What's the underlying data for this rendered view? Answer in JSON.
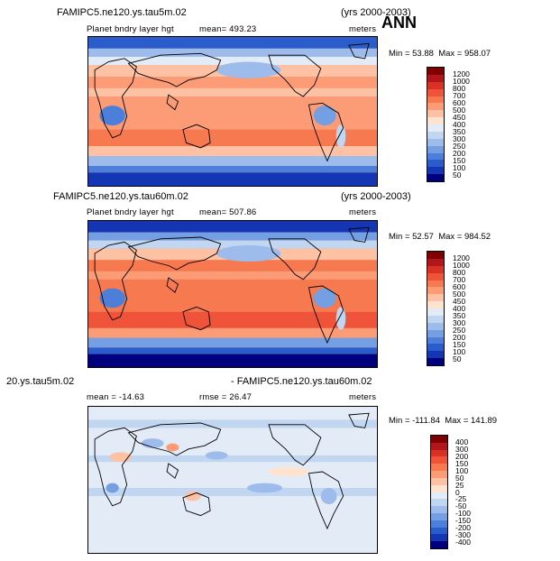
{
  "season": "ANN",
  "panels": [
    {
      "case_left": "FAMIPC5.ne120.ys.tau5m.02",
      "case_right": "",
      "years": "(yrs 2000-2003)",
      "field": "Planet bndry layer hgt",
      "mean": "mean= 493.23",
      "rmse": "",
      "units": "meters",
      "min": "Min = ",
      "min_val": "53.88",
      "max": "Max = ",
      "max_val": "958.07",
      "legend_labels": [
        "1200",
        "1000",
        "800",
        "700",
        "600",
        "500",
        "450",
        "400",
        "350",
        "300",
        "250",
        "200",
        "150",
        "100",
        "50"
      ],
      "legend_colors": [
        "#800000",
        "#b2151c",
        "#d93124",
        "#ef5339",
        "#f6794f",
        "#fb9c77",
        "#fdc1a4",
        "#fee3d1",
        "#e3ebf7",
        "#c1d6f1",
        "#9dbceb",
        "#759fe3",
        "#4d7fda",
        "#2b5ccc",
        "#1436b4",
        "#00007f"
      ]
    },
    {
      "case_left": "FAMIPC5.ne120.ys.tau60m.02",
      "case_right": "",
      "years": "(yrs 2000-2003)",
      "field": "Planet bndry layer hgt",
      "mean": "mean= 507.86",
      "rmse": "",
      "units": "meters",
      "min": "Min = ",
      "min_val": "52.57",
      "max": "Max = ",
      "max_val": "984.52",
      "legend_labels": [
        "1200",
        "1000",
        "800",
        "700",
        "600",
        "500",
        "450",
        "400",
        "350",
        "300",
        "250",
        "200",
        "150",
        "100",
        "50"
      ],
      "legend_colors": [
        "#800000",
        "#b2151c",
        "#d93124",
        "#ef5339",
        "#f6794f",
        "#fb9c77",
        "#fdc1a4",
        "#fee3d1",
        "#e3ebf7",
        "#c1d6f1",
        "#9dbceb",
        "#759fe3",
        "#4d7fda",
        "#2b5ccc",
        "#1436b4",
        "#00007f"
      ]
    },
    {
      "case_left": "20.ys.tau5m.02",
      "case_right": "- FAMIPC5.ne120.ys.tau60m.02",
      "years": "",
      "field": "",
      "mean": "mean = -14.63",
      "rmse": "rmse =  26.47",
      "units": "meters",
      "min": "Min = ",
      "min_val": "-111.84",
      "max": "Max = ",
      "max_val": "141.89",
      "legend_labels": [
        "400",
        "300",
        "200",
        "150",
        "100",
        "50",
        "25",
        "0",
        "-25",
        "-50",
        "-100",
        "-150",
        "-200",
        "-300",
        "-400"
      ],
      "legend_colors": [
        "#800000",
        "#b2151c",
        "#d93124",
        "#ef5339",
        "#f6794f",
        "#fb9c77",
        "#fdc1a4",
        "#fee3d1",
        "#e3ebf7",
        "#c1d6f1",
        "#9dbceb",
        "#759fe3",
        "#4d7fda",
        "#2b5ccc",
        "#1436b4",
        "#00007f"
      ]
    }
  ]
}
